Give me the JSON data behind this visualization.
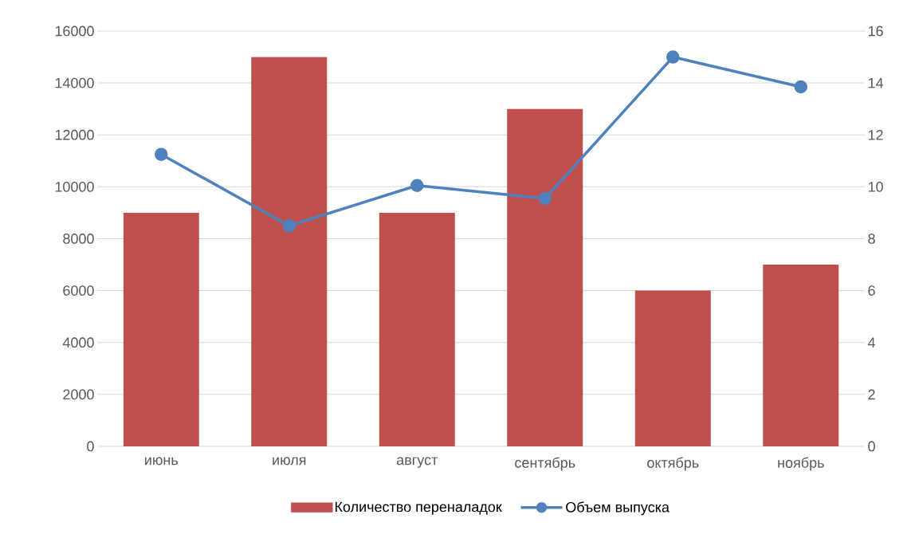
{
  "chart_data": {
    "type": "bar",
    "categories": [
      "июнь",
      "июля",
      "август",
      "сентябрь",
      "октябрь",
      "ноябрь"
    ],
    "series": [
      {
        "name": "Количество переналадок",
        "color": "#c0504d",
        "values": [
          9000,
          15000,
          9000,
          13000,
          6000,
          7000
        ]
      },
      {
        "name": "Объем выпуска",
        "type": "line",
        "axis": "y2",
        "color": "#4f81bd",
        "values": [
          11.25,
          8.5,
          10.05,
          9.55,
          15,
          13.85
        ]
      }
    ],
    "ylim": [
      0,
      16000
    ],
    "yticks": [
      0,
      2000,
      4000,
      6000,
      8000,
      10000,
      12000,
      14000,
      16000
    ],
    "y2lim": [
      0,
      16
    ],
    "y2ticks": [
      0,
      2,
      4,
      6,
      8,
      10,
      12,
      14,
      16
    ],
    "grid": "y",
    "legend": "bottom",
    "marker": "circle"
  }
}
